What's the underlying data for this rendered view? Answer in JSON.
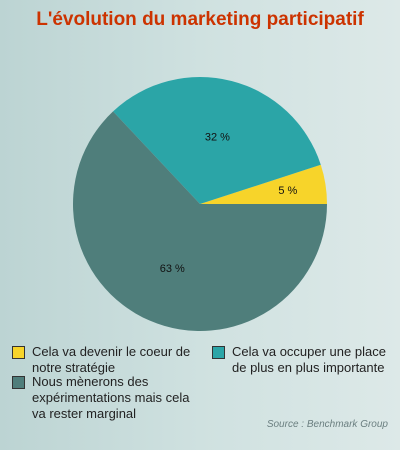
{
  "chart_data": {
    "type": "pie",
    "title": "L'évolution du marketing participatif",
    "slices": [
      {
        "label": "Cela va devenir le coeur de notre stratégie",
        "value": 5,
        "display": "5 %",
        "color": "#f7d42a"
      },
      {
        "label": "Cela va occuper une place de plus en plus importante",
        "value": 32,
        "display": "32 %",
        "color": "#2ba5a7"
      },
      {
        "label": "Nous mènerons des expérimentations mais cela va rester marginal",
        "value": 63,
        "display": "63 %",
        "color": "#4f7e7b"
      }
    ],
    "legend_placement": "bottom",
    "source": "Source : Benchmark Group"
  }
}
